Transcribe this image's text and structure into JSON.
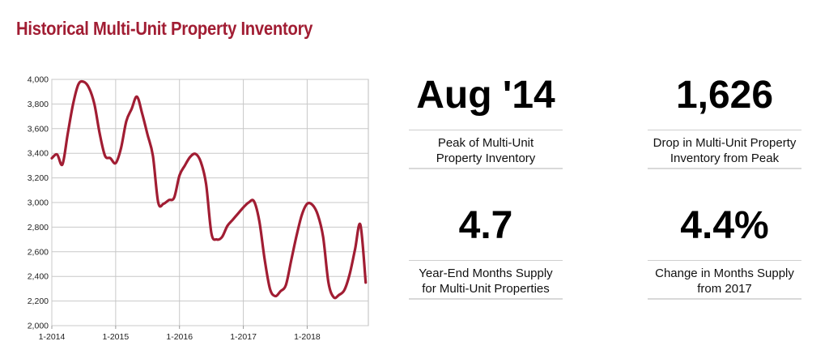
{
  "title": "Historical Multi-Unit Property Inventory",
  "colors": {
    "line": "#a11d33",
    "title": "#a11d33",
    "grid": "#c8c8c8"
  },
  "stats": [
    {
      "value": "Aug '14",
      "label_line1": "Peak of Multi-Unit",
      "label_line2": "Property Inventory"
    },
    {
      "value": "1,626",
      "label_line1": "Drop in Multi-Unit Property",
      "label_line2": "Inventory from Peak"
    },
    {
      "value": "4.7",
      "label_line1": "Year-End Months Supply",
      "label_line2": "for Multi-Unit Properties"
    },
    {
      "value": "4.4%",
      "label_line1": "Change in Months Supply",
      "label_line2": "from 2017"
    }
  ],
  "chart_data": {
    "type": "line",
    "title": "",
    "xlabel": "",
    "ylabel": "",
    "ylim": [
      2000,
      4000
    ],
    "yticks": [
      "2,000",
      "2,200",
      "2,400",
      "2,600",
      "2,800",
      "3,000",
      "3,200",
      "3,400",
      "3,600",
      "3,800",
      "4,000"
    ],
    "xticks": [
      "1-2014",
      "1-2015",
      "1-2016",
      "1-2017",
      "1-2018"
    ],
    "grid": true,
    "legend": "none",
    "x": [
      "2014-01",
      "2014-02",
      "2014-03",
      "2014-04",
      "2014-05",
      "2014-06",
      "2014-07",
      "2014-08",
      "2014-09",
      "2014-10",
      "2014-11",
      "2014-12",
      "2015-01",
      "2015-02",
      "2015-03",
      "2015-04",
      "2015-05",
      "2015-06",
      "2015-07",
      "2015-08",
      "2015-09",
      "2015-10",
      "2015-11",
      "2015-12",
      "2016-01",
      "2016-02",
      "2016-03",
      "2016-04",
      "2016-05",
      "2016-06",
      "2016-07",
      "2016-08",
      "2016-09",
      "2016-10",
      "2016-11",
      "2016-12",
      "2017-01",
      "2017-02",
      "2017-03",
      "2017-04",
      "2017-05",
      "2017-06",
      "2017-07",
      "2017-08",
      "2017-09",
      "2017-10",
      "2017-11",
      "2017-12",
      "2018-01",
      "2018-02",
      "2018-03",
      "2018-04",
      "2018-05",
      "2018-06",
      "2018-07",
      "2018-08",
      "2018-09",
      "2018-10",
      "2018-11",
      "2018-12"
    ],
    "series": [
      {
        "values": [
          3360,
          3390,
          3310,
          3560,
          3800,
          3960,
          3980,
          3930,
          3800,
          3560,
          3380,
          3360,
          3320,
          3440,
          3660,
          3760,
          3860,
          3720,
          3550,
          3380,
          3000,
          2990,
          3020,
          3040,
          3220,
          3300,
          3370,
          3395,
          3330,
          3150,
          2750,
          2700,
          2720,
          2810,
          2860,
          2910,
          2960,
          3000,
          3010,
          2850,
          2540,
          2300,
          2240,
          2280,
          2330,
          2530,
          2730,
          2900,
          2990,
          2980,
          2900,
          2720,
          2350,
          2230,
          2250,
          2290,
          2420,
          2620,
          2820,
          2350
        ]
      }
    ]
  }
}
